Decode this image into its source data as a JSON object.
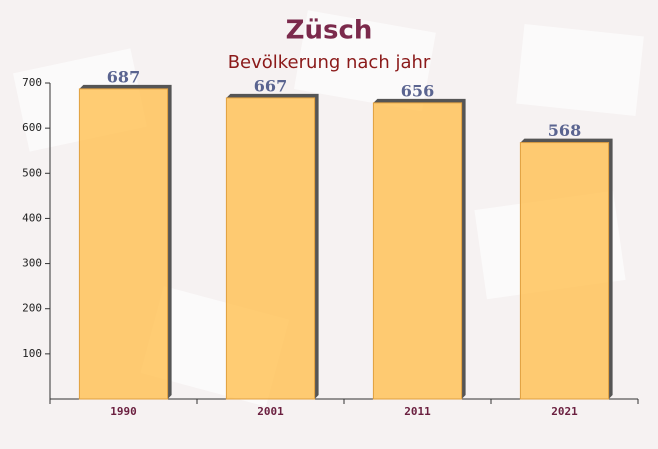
{
  "chart_data": {
    "type": "bar",
    "title": "Züsch",
    "subtitle": "Bevölkerung nach jahr",
    "categories": [
      "1990",
      "2001",
      "2011",
      "2021"
    ],
    "values": [
      687,
      667,
      656,
      568
    ],
    "color": "#ffc35a",
    "ylim": [
      0,
      700
    ],
    "yticks": [
      100,
      200,
      300,
      400,
      500,
      600,
      700
    ],
    "grid": false
  }
}
